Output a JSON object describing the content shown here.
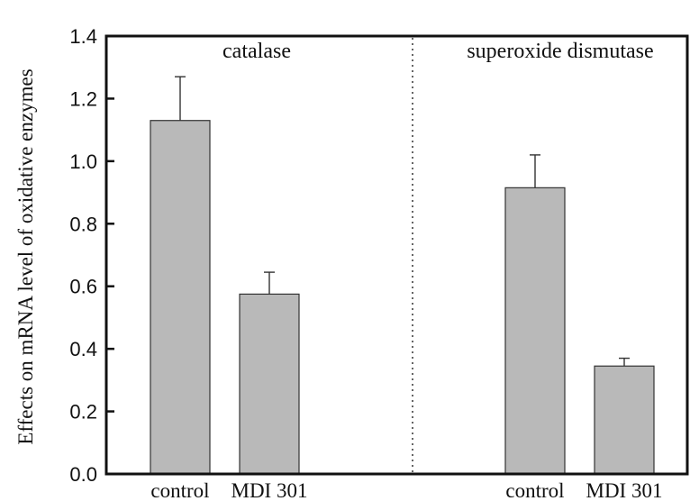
{
  "chart_data": {
    "type": "bar",
    "ylabel": "Effects on mRNA level of oxidative enzymes",
    "ylim": [
      0,
      1.4
    ],
    "yticks": [
      "0.0",
      "0.2",
      "0.4",
      "0.6",
      "0.8",
      "1.0",
      "1.2",
      "1.4"
    ],
    "grid": false,
    "bar_color": "#b9b9b9",
    "panels": [
      {
        "title": "catalase",
        "categories": [
          "control",
          "MDI 301"
        ],
        "values": [
          1.13,
          0.575
        ],
        "errors": [
          0.14,
          0.07
        ]
      },
      {
        "title": "superoxide dismutase",
        "categories": [
          "control",
          "MDI 301"
        ],
        "values": [
          0.915,
          0.345
        ],
        "errors": [
          0.105,
          0.025
        ]
      }
    ]
  }
}
